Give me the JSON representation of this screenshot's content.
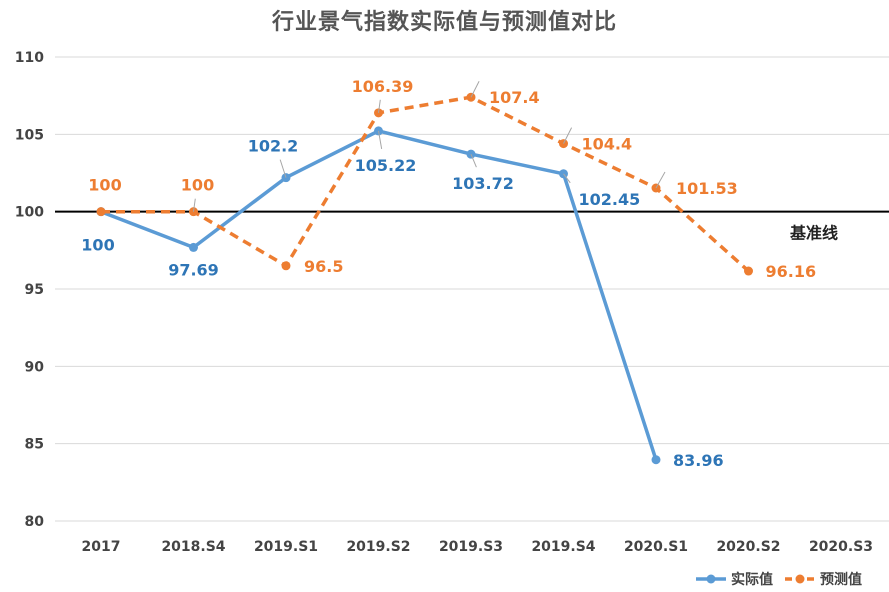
{
  "chart_data": {
    "type": "line",
    "title": "行业景气指数实际值与预测值对比",
    "categories": [
      "2017",
      "2018.S4",
      "2019.S1",
      "2019.S2",
      "2019.S3",
      "2019.S4",
      "2020.S1",
      "2020.S2",
      "2020.S3"
    ],
    "ylim": [
      80,
      110
    ],
    "yticks": [
      "80",
      "85",
      "90",
      "95",
      "100",
      "105",
      "110"
    ],
    "grid": true,
    "legend_position": "bottom-right",
    "baseline": {
      "value": 100,
      "label": "基准线"
    },
    "series": [
      {
        "name": "实际值",
        "color": "#5b9bd5",
        "label_color": "#2e75b6",
        "style": "solid",
        "values": [
          100,
          97.69,
          102.2,
          105.22,
          103.72,
          102.45,
          83.96,
          null,
          null
        ],
        "labels": [
          "100",
          "97.69",
          "102.2",
          "105.22",
          "103.72",
          "102.45",
          "83.96",
          "",
          ""
        ]
      },
      {
        "name": "预测值",
        "color": "#ed7d31",
        "label_color": "#ed7d31",
        "style": "dashed",
        "values": [
          100,
          100,
          96.5,
          106.39,
          107.4,
          104.4,
          101.53,
          96.16,
          null
        ],
        "labels": [
          "100",
          "100",
          "96.5",
          "106.39",
          "107.4",
          "104.4",
          "101.53",
          "96.16",
          ""
        ]
      }
    ]
  }
}
